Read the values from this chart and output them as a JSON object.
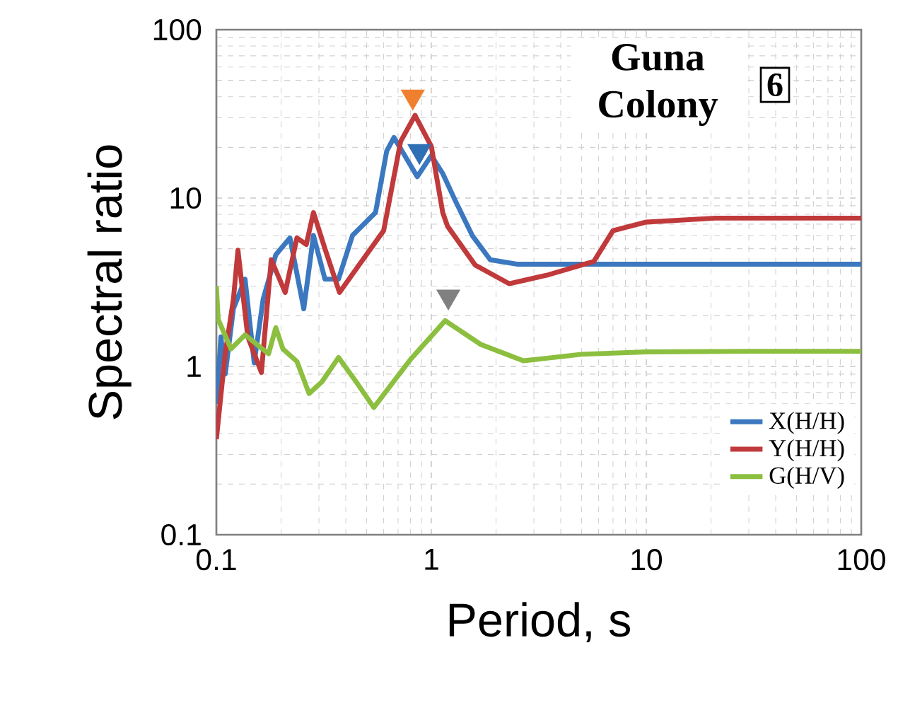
{
  "chart_data": {
    "type": "line",
    "xlabel": "Period, s",
    "ylabel": "Spectral ratio",
    "log": "xy",
    "grid": true,
    "legend": "bottom right",
    "xlim": [
      0.1,
      100
    ],
    "xticks": [
      0.1,
      1,
      10,
      100
    ],
    "ylim": [
      0.1,
      100
    ],
    "yticks": [
      0.1,
      1,
      10,
      100
    ],
    "annotations": [
      "Guna Colony",
      "6"
    ],
    "series": [
      {
        "name": "X(H/H)",
        "color": "#3b78c0",
        "x": [
          0.1,
          0.105,
          0.11,
          0.12,
          0.136,
          0.15,
          0.165,
          0.189,
          0.22,
          0.255,
          0.283,
          0.32,
          0.37,
          0.43,
          0.55,
          0.62,
          0.67,
          0.75,
          0.86,
          1.0,
          1.13,
          1.29,
          1.55,
          1.88,
          2.5,
          5,
          10,
          30,
          100
        ],
        "values": [
          0.6,
          1.5,
          0.9,
          2.2,
          3.3,
          1.05,
          2.5,
          4.6,
          5.8,
          2.2,
          6.0,
          3.3,
          3.3,
          6.0,
          8.2,
          19,
          22.9,
          18,
          13.4,
          17.9,
          14,
          9.7,
          6,
          4.3,
          4.05,
          4.05,
          4.05,
          4.05,
          4.05
        ]
      },
      {
        "name": "Y(H/H)",
        "color": "#c0393b",
        "x": [
          0.1,
          0.11,
          0.12,
          0.126,
          0.14,
          0.162,
          0.18,
          0.209,
          0.237,
          0.262,
          0.283,
          0.32,
          0.374,
          0.48,
          0.6,
          0.72,
          0.84,
          1.0,
          1.13,
          1.19,
          1.6,
          2.3,
          3.5,
          5.7,
          7.0,
          10,
          21,
          50,
          100
        ],
        "values": [
          0.37,
          1.2,
          2.5,
          4.9,
          1.5,
          0.92,
          4.3,
          2.75,
          5.8,
          5.3,
          8.2,
          5,
          2.75,
          4.3,
          6.4,
          21.7,
          31,
          20.3,
          8.2,
          6.8,
          4,
          3.1,
          3.5,
          4.2,
          6.4,
          7.2,
          7.6,
          7.6,
          7.6
        ]
      },
      {
        "name": "G(H/V)",
        "color": "#8cbf3f",
        "x": [
          0.1,
          0.102,
          0.117,
          0.136,
          0.16,
          0.175,
          0.189,
          0.204,
          0.237,
          0.27,
          0.31,
          0.37,
          0.45,
          0.54,
          0.8,
          1.16,
          1.7,
          2.68,
          5,
          10,
          30,
          100
        ],
        "values": [
          3.0,
          1.9,
          1.27,
          1.54,
          1.3,
          1.19,
          1.7,
          1.27,
          1.07,
          0.69,
          0.81,
          1.13,
          0.8,
          0.57,
          1.1,
          1.87,
          1.35,
          1.08,
          1.18,
          1.22,
          1.23,
          1.23
        ]
      },
      {
        "type": "scatter",
        "marker": "triangle",
        "color": "#f08030",
        "x": [
          0.82
        ],
        "values": [
          40
        ]
      },
      {
        "type": "scatter",
        "marker": "triangle",
        "color": "#2e6fb5",
        "x": [
          0.88
        ],
        "values": [
          19
        ]
      },
      {
        "type": "scatter",
        "marker": "triangle",
        "color": "#808080",
        "x": [
          1.2
        ],
        "values": [
          2.6
        ]
      }
    ]
  }
}
